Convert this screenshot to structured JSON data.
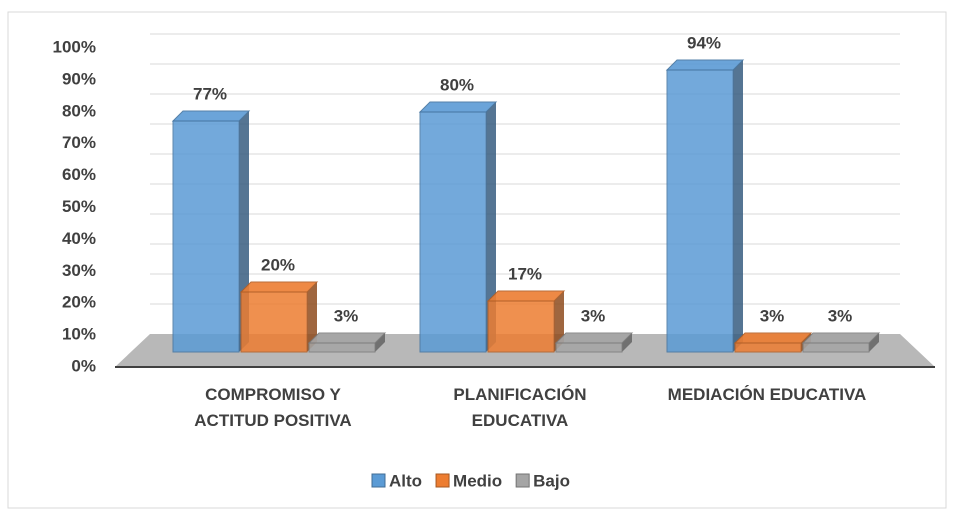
{
  "chart_data": {
    "type": "bar3d",
    "categories": [
      "COMPROMISO Y ACTITUD POSITIVA",
      "PLANIFICACIÓN EDUCATIVA",
      "MEDIACIÓN EDUCATIVA"
    ],
    "series": [
      {
        "name": "Alto",
        "color": "#5b9bd5",
        "values": [
          77,
          80,
          94
        ],
        "value_labels": [
          "77%",
          "80%",
          "94%"
        ]
      },
      {
        "name": "Medio",
        "color": "#ed7d31",
        "values": [
          20,
          17,
          3
        ],
        "value_labels": [
          "20%",
          "17%",
          "3%"
        ]
      },
      {
        "name": "Bajo",
        "color": "#a5a5a5",
        "values": [
          3,
          3,
          3
        ],
        "value_labels": [
          "3%",
          "3%",
          "3%"
        ]
      }
    ],
    "ylim": [
      0,
      100
    ],
    "yticks": [
      {
        "value": 0,
        "label": "0%"
      },
      {
        "value": 10,
        "label": "10%"
      },
      {
        "value": 20,
        "label": "20%"
      },
      {
        "value": 30,
        "label": "30%"
      },
      {
        "value": 40,
        "label": "40%"
      },
      {
        "value": 50,
        "label": "50%"
      },
      {
        "value": 60,
        "label": "60%"
      },
      {
        "value": 70,
        "label": "70%"
      },
      {
        "value": 80,
        "label": "80%"
      },
      {
        "value": 90,
        "label": "90%"
      },
      {
        "value": 100,
        "label": "100%"
      }
    ],
    "grid": true,
    "legend": "bottom"
  }
}
